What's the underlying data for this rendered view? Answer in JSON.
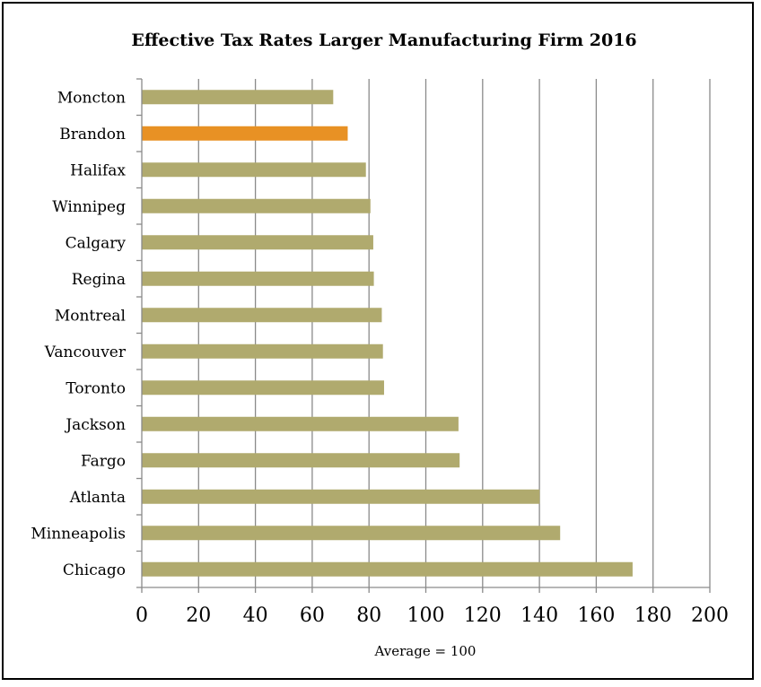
{
  "chart_data": {
    "type": "bar",
    "orientation": "horizontal",
    "title": "Effective Tax Rates Larger Manufacturing Firm 2016",
    "xlabel": "Average = 100",
    "ylabel": "",
    "xlim": [
      0,
      200
    ],
    "x_ticks": [
      0,
      20,
      40,
      60,
      80,
      100,
      120,
      140,
      160,
      180,
      200
    ],
    "grid": "vertical",
    "legend": "none",
    "categories": [
      "Moncton",
      "Brandon",
      "Halifax",
      "Winnipeg",
      "Calgary",
      "Regina",
      "Montreal",
      "Vancouver",
      "Toronto",
      "Jackson",
      "Fargo",
      "Atlanta",
      "Minneapolis",
      "Chicago"
    ],
    "values": [
      67.4,
      72.5,
      78.9,
      80.5,
      81.5,
      81.7,
      84.5,
      84.9,
      85.3,
      111.5,
      111.9,
      140.1,
      147.3,
      172.8
    ],
    "bar_color": "#b0aa6e",
    "highlight_color": "#e89124",
    "highlight_category": "Brandon"
  }
}
